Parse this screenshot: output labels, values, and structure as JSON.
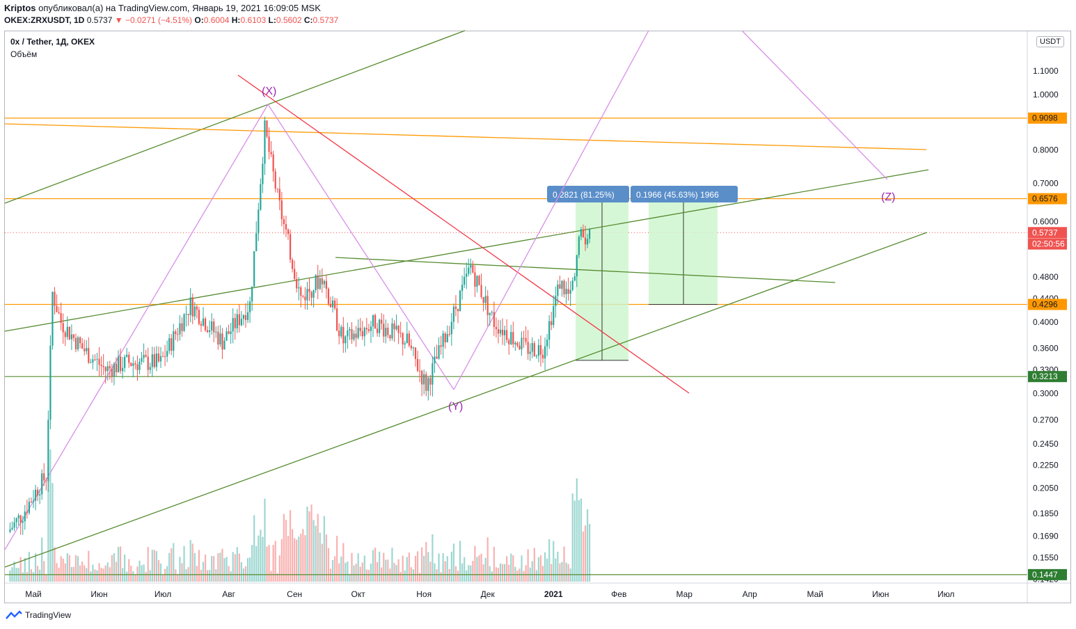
{
  "header": {
    "author": "Kriptos",
    "publish_text": "опубликовал(а) на TradingView.com, Январь 19, 2021 16:09:05 MSK",
    "symbol": "OKEX:ZRXUSDT, 1D",
    "last": "0.5737",
    "change": "▼ −0.0271 (−4.51%)",
    "o_label": "O:",
    "o": "0.6004",
    "h_label": "H:",
    "h": "0.6103",
    "l_label": "L:",
    "l": "0.5602",
    "c_label": "C:",
    "c": "0.5737"
  },
  "pane": {
    "title": "0x / Tether, 1Д, OKEX",
    "volume_label": "Объём",
    "currency": "USDT"
  },
  "footer": {
    "brand": "TradingView"
  },
  "colors": {
    "up": "#26a69a",
    "down": "#ef5350",
    "orange": "#ff9800",
    "green_line": "#558b2f",
    "red_line": "#f23645",
    "pink_line": "#d88fe8",
    "wave_label": "#9c27b0",
    "measure_fill": "#ccf5cc",
    "badge_blue": "#5a8ec9"
  },
  "chart_data": {
    "type": "candlestick",
    "scale": "log",
    "ylim": [
      0.14,
      1.2
    ],
    "x_ticks": [
      "Май",
      "Июн",
      "Июл",
      "Авг",
      "Сен",
      "Окт",
      "Ноя",
      "Дек",
      "2021",
      "Фев",
      "Мар",
      "Апр",
      "Май",
      "Июн",
      "Июл"
    ],
    "y_ticks": [
      "1.1000",
      "1.0000",
      "0.8000",
      "0.7000",
      "0.6000",
      "0.4800",
      "0.4400",
      "0.4000",
      "0.3600",
      "0.3300",
      "0.3000",
      "0.2700",
      "0.2450",
      "0.2250",
      "0.2050",
      "0.1850",
      "0.1690",
      "0.1550",
      "0.1420"
    ],
    "price_badges": [
      {
        "label": "0.9098",
        "value": 0.9098,
        "color": "#ff9800"
      },
      {
        "label": "0.6576",
        "value": 0.6576,
        "color": "#ff9800"
      },
      {
        "label": "0.5737",
        "value": 0.5737,
        "color": "#ef5350"
      },
      {
        "label": "02:50:56",
        "value": 0.548,
        "color": "#ef5350"
      },
      {
        "label": "0.4296",
        "value": 0.4296,
        "color": "#ff9800"
      },
      {
        "label": "0.3213",
        "value": 0.3213,
        "color": "#2e7d32"
      },
      {
        "label": "0.1447",
        "value": 0.1447,
        "color": "#2e7d32"
      }
    ],
    "horizontal_levels": [
      0.9098,
      0.6576,
      0.4296,
      0.3213,
      0.1447
    ],
    "current_price": 0.5737,
    "wave_labels": [
      "(X)",
      "(Y)",
      "(Z)"
    ],
    "measurements": [
      "0.2821 (81.25%)",
      "0.1966 (45.63%) 1966"
    ],
    "candles": [
      {
        "date": "Apr 20",
        "close": 0.172
      },
      {
        "date": "Apr 27",
        "close": 0.185
      },
      {
        "date": "May 04",
        "close": 0.205
      },
      {
        "date": "May 08",
        "close": 0.215
      },
      {
        "date": "May 11",
        "close": 0.45
      },
      {
        "date": "May 15",
        "close": 0.4
      },
      {
        "date": "May 25",
        "close": 0.36
      },
      {
        "date": "Jun 05",
        "close": 0.33
      },
      {
        "date": "Jun 15",
        "close": 0.34
      },
      {
        "date": "Jul 01",
        "close": 0.34
      },
      {
        "date": "Jul 15",
        "close": 0.43
      },
      {
        "date": "Jul 30",
        "close": 0.37
      },
      {
        "date": "Aug 12",
        "close": 0.43
      },
      {
        "date": "Aug 19",
        "close": 0.87
      },
      {
        "date": "Aug 25",
        "close": 0.66
      },
      {
        "date": "Sep 05",
        "close": 0.44
      },
      {
        "date": "Sep 15",
        "close": 0.48
      },
      {
        "date": "Sep 25",
        "close": 0.37
      },
      {
        "date": "Oct 10",
        "close": 0.4
      },
      {
        "date": "Oct 25",
        "close": 0.37
      },
      {
        "date": "Nov 03",
        "close": 0.31
      },
      {
        "date": "Nov 10",
        "close": 0.36
      },
      {
        "date": "Nov 24",
        "close": 0.5
      },
      {
        "date": "Dec 05",
        "close": 0.4
      },
      {
        "date": "Dec 20",
        "close": 0.36
      },
      {
        "date": "Dec 28",
        "close": 0.36
      },
      {
        "date": "Jan 05",
        "close": 0.47
      },
      {
        "date": "Jan 10",
        "close": 0.44
      },
      {
        "date": "Jan 14",
        "close": 0.56
      },
      {
        "date": "Jan 19",
        "close": 0.5737
      }
    ]
  }
}
